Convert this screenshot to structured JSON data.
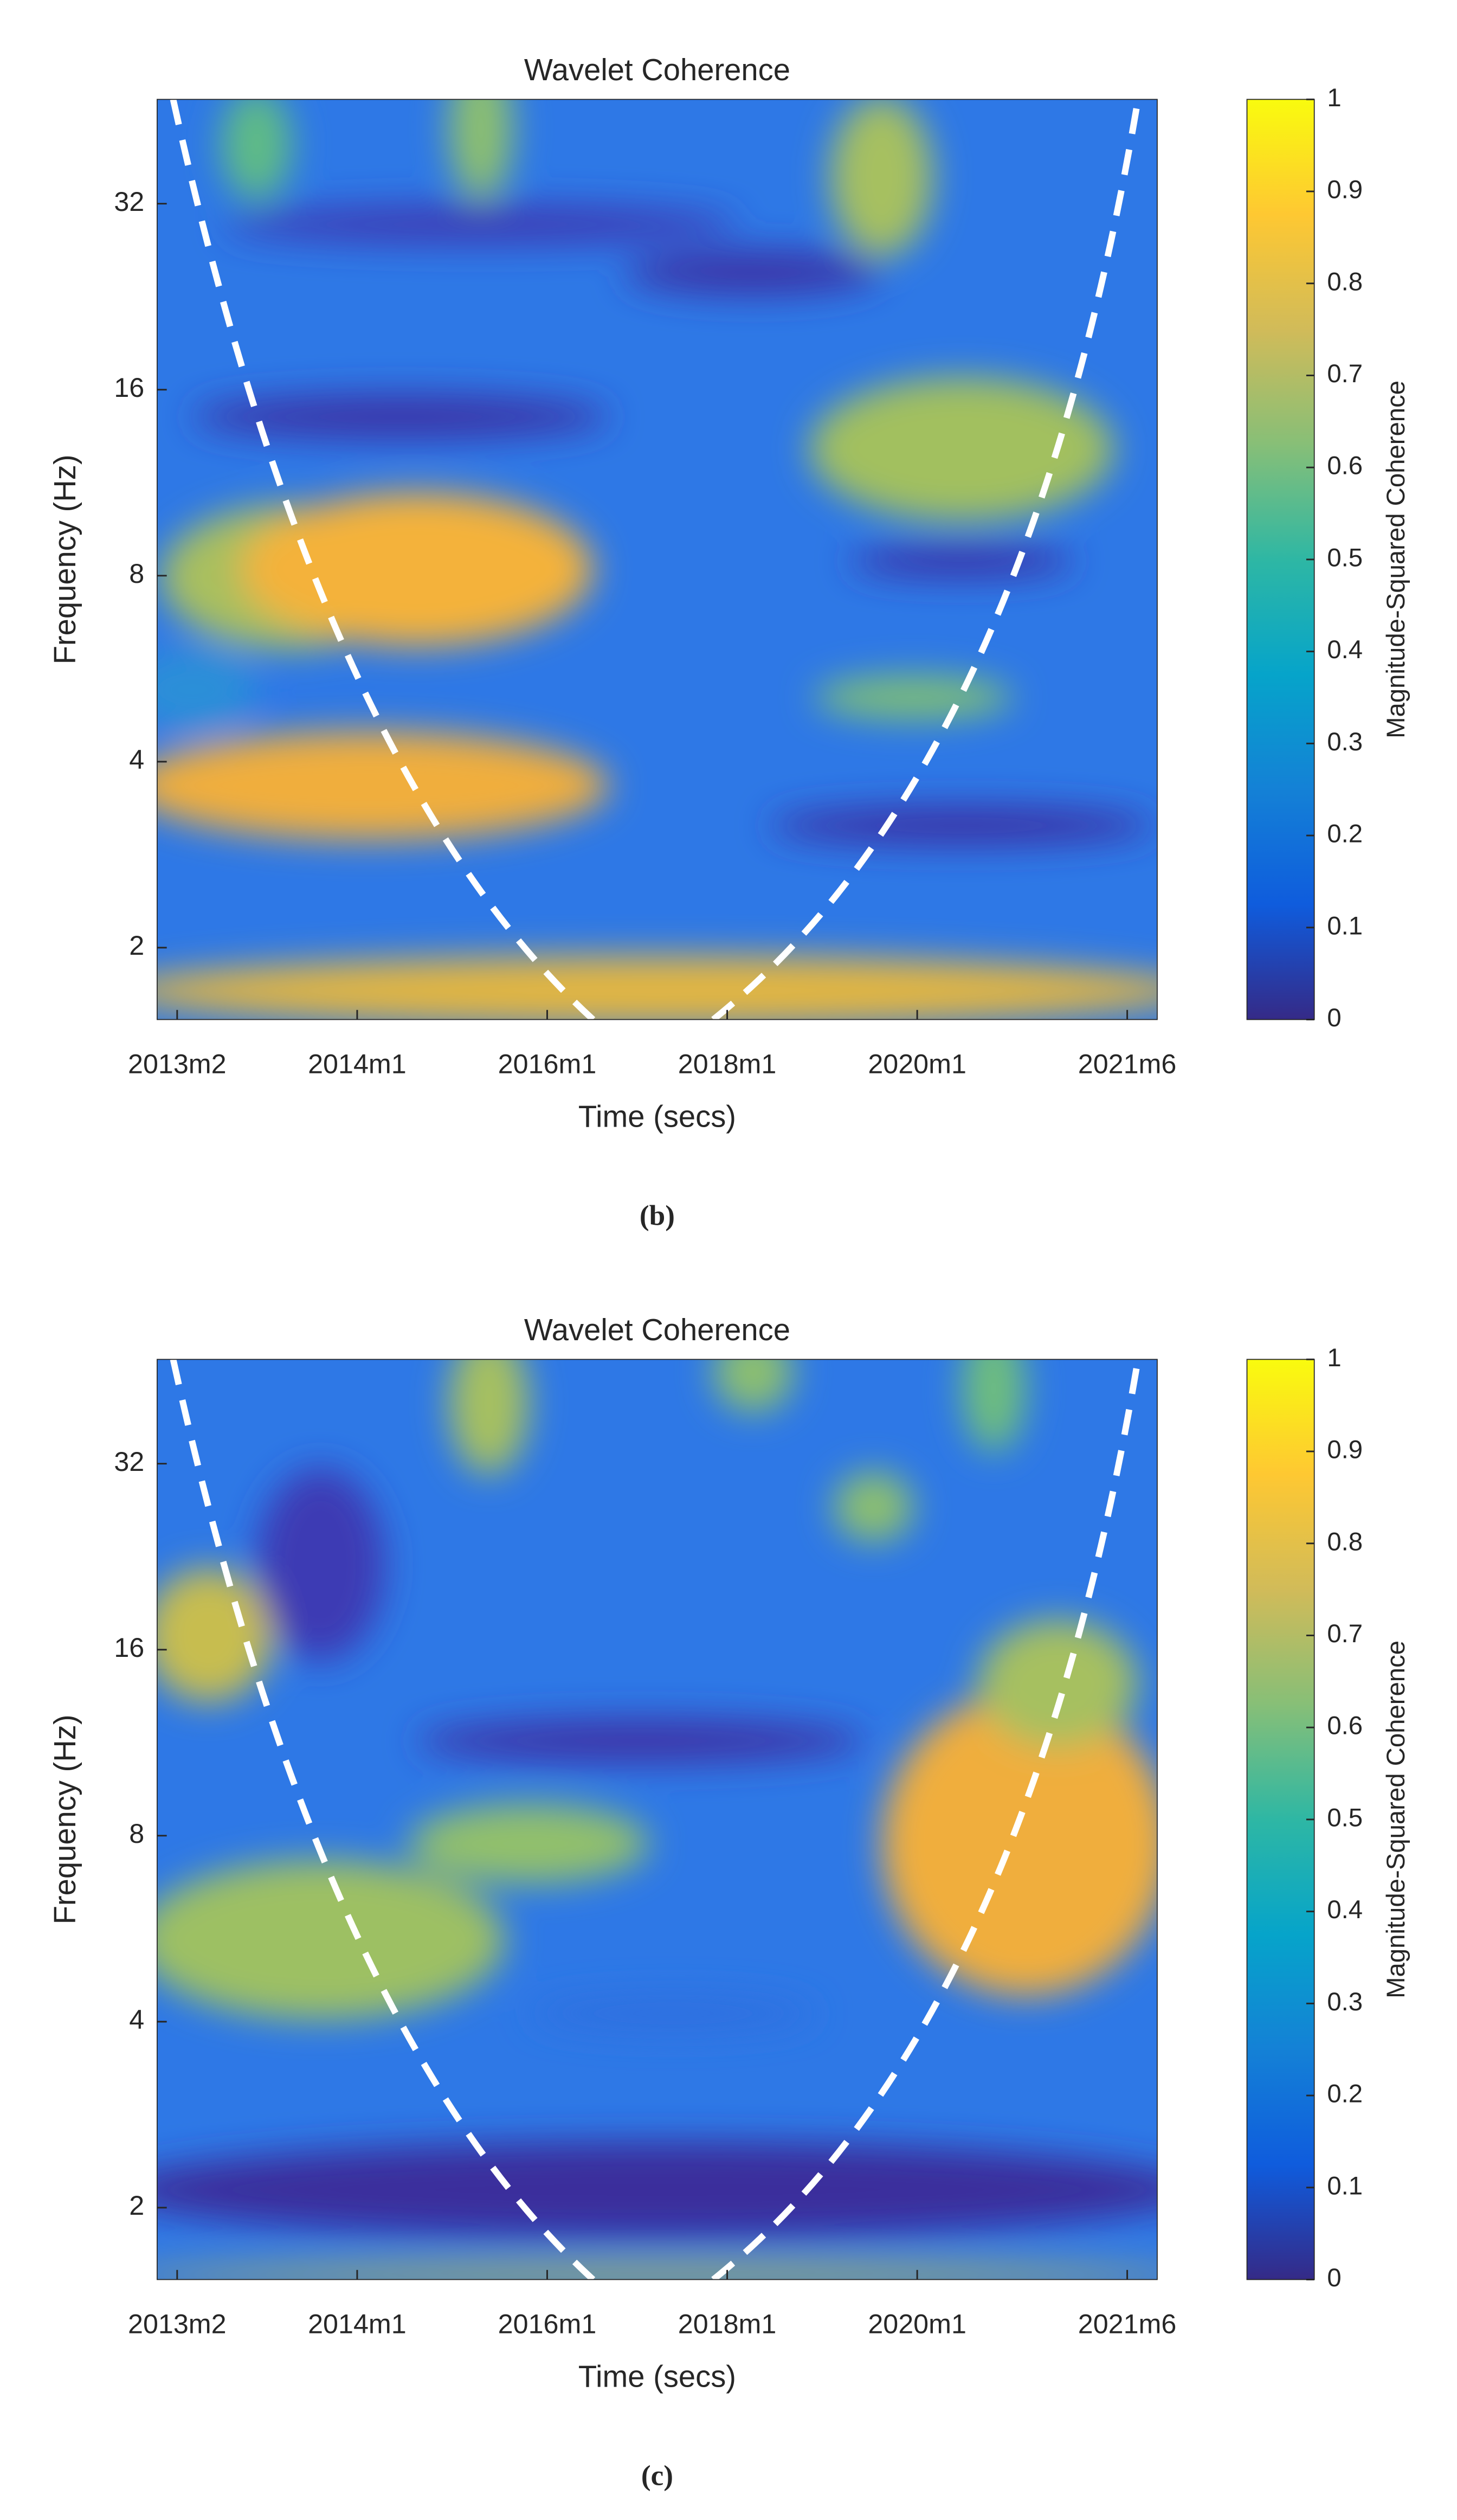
{
  "chart_data": [
    {
      "type": "heatmap",
      "title": "Wavelet Coherence",
      "xlabel": "Time (secs)",
      "ylabel": "Frequency (Hz)",
      "xlim": [
        0,
        100
      ],
      "xticks": [
        {
          "value": 2,
          "label": "2013m2"
        },
        {
          "value": 20,
          "label": "2014m1"
        },
        {
          "value": 39,
          "label": "2016m1"
        },
        {
          "value": 57,
          "label": "2018m1"
        },
        {
          "value": 76,
          "label": "2020m1"
        },
        {
          "value": 97,
          "label": "2021m6"
        }
      ],
      "ylim": [
        1.53,
        47.2
      ],
      "yticks": [
        2,
        4,
        8,
        16,
        32
      ],
      "log_y": true,
      "colorbar": {
        "label": "Magnitude-Squared Coherence",
        "lim": [
          0,
          1
        ],
        "ticks": [
          0,
          0.1,
          0.2,
          0.3,
          0.4,
          0.5,
          0.6,
          0.7,
          0.8,
          0.9,
          1
        ]
      },
      "caption": "(b)"
    },
    {
      "type": "heatmap",
      "title": "Wavelet Coherence",
      "xlabel": "Time (secs)",
      "ylabel": "Frequency (Hz)",
      "xlim": [
        0,
        100
      ],
      "xticks": [
        {
          "value": 2,
          "label": "2013m2"
        },
        {
          "value": 20,
          "label": "2014m1"
        },
        {
          "value": 39,
          "label": "2016m1"
        },
        {
          "value": 57,
          "label": "2018m1"
        },
        {
          "value": 76,
          "label": "2020m1"
        },
        {
          "value": 97,
          "label": "2021m6"
        }
      ],
      "ylim": [
        1.53,
        47.2
      ],
      "yticks": [
        2,
        4,
        8,
        16,
        32
      ],
      "log_y": true,
      "colorbar": {
        "label": "Magnitude-Squared Coherence",
        "lim": [
          0,
          1
        ],
        "ticks": [
          0,
          0.1,
          0.2,
          0.3,
          0.4,
          0.5,
          0.6,
          0.7,
          0.8,
          0.9,
          1
        ]
      },
      "caption": "(c)"
    }
  ]
}
